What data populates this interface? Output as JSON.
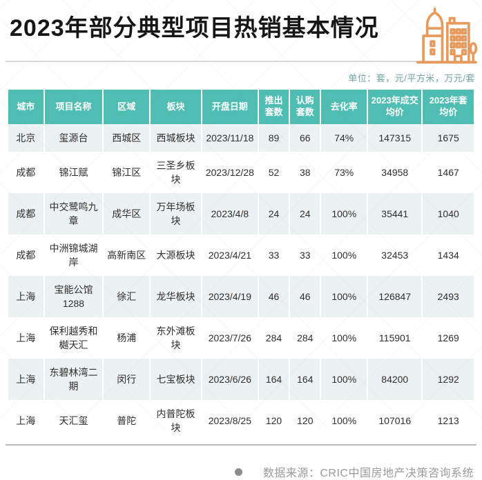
{
  "header": {
    "title": "2023年部分典型项目热销基本情况",
    "unit_note": "单位：套，元/平方米，万元/套"
  },
  "footer": {
    "source_note": "数据来源：CRIC中国房地产决策咨询系统"
  },
  "icons": {
    "buildings": "city-buildings-outline-icon",
    "source_bullet": "circle-bullet-icon"
  },
  "colors": {
    "header_teal": "#4FBDB2",
    "row_alt_gray": "#ECF1F1",
    "icon_orange": "#E89A5C",
    "title_text": "#161616",
    "unit_text": "#72A59F",
    "footer_text": "#9A9A9A"
  },
  "table": {
    "header_lines": [
      "城市",
      "项目名称",
      "区域",
      "板块",
      "开盘日期",
      "推出\n套数",
      "认购\n套数",
      "去化率",
      "2023年成交\n均价",
      "2023年套\n均价"
    ]
  },
  "chart_data": {
    "type": "table",
    "title": "2023年部分典型项目热销基本情况",
    "columns": [
      "城市",
      "项目名称",
      "区域",
      "板块",
      "开盘日期",
      "推出套数",
      "认购套数",
      "去化率",
      "2023年成交均价",
      "2023年套均价"
    ],
    "rows": [
      [
        "北京",
        "玺源台",
        "西城区",
        "西城板块",
        "2023/11/18",
        89,
        66,
        "74%",
        147315,
        1675
      ],
      [
        "成都",
        "锦江赋",
        "锦江区",
        "三圣乡板块",
        "2023/12/28",
        52,
        38,
        "73%",
        34958,
        1467
      ],
      [
        "成都",
        "中交鹭鸣九章",
        "成华区",
        "万年场板块",
        "2023/4/8",
        24,
        24,
        "100%",
        35441,
        1040
      ],
      [
        "成都",
        "中洲锦城湖岸",
        "高新南区",
        "大源板块",
        "2023/4/21",
        33,
        33,
        "100%",
        32453,
        1434
      ],
      [
        "上海",
        "宝能公馆1288",
        "徐汇",
        "龙华板块",
        "2023/4/19",
        46,
        46,
        "100%",
        126847,
        2493
      ],
      [
        "上海",
        "保利越秀和樾天汇",
        "杨浦",
        "东外滩板块",
        "2023/7/26",
        284,
        284,
        "100%",
        115901,
        1269
      ],
      [
        "上海",
        "东碧林湾二期",
        "闵行",
        "七宝板块",
        "2023/6/26",
        164,
        164,
        "100%",
        84200,
        1292
      ],
      [
        "上海",
        "天汇玺",
        "普陀",
        "内普陀板块",
        "2023/8/25",
        120,
        120,
        "100%",
        107016,
        1213
      ]
    ]
  }
}
